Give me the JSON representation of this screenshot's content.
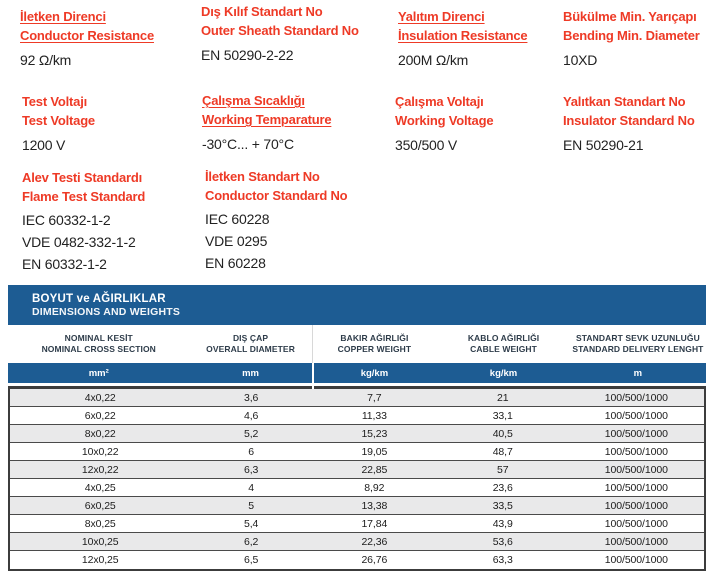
{
  "colors": {
    "accent_red": "#ee3a26",
    "band_blue": "#1d5c93",
    "header_text_navy": "#2e3c4a",
    "row_stripe_gray": "#e9e9ea"
  },
  "specs": {
    "blocks": [
      {
        "title1": "İletken Direnci",
        "title2": "Conductor Resistance",
        "underlined": true,
        "values": [
          "92 Ω/km"
        ]
      },
      {
        "title1": "Dış Kılıf Standart No",
        "title2": "Outer Sheath Standard No",
        "underlined": false,
        "values": [
          "EN 50290-2-22"
        ]
      },
      {
        "title1": "Yalıtım Direnci",
        "title2": "İnsulation Resistance",
        "underlined": true,
        "values": [
          "200M Ω/km"
        ]
      },
      {
        "title1": "Bükülme Min. Yarıçapı",
        "title2": "Bending Min. Diameter",
        "underlined": false,
        "values": [
          "10XD"
        ]
      },
      {
        "title1": "Test Voltajı",
        "title2": "Test Voltage",
        "underlined": false,
        "values": [
          "1200 V"
        ]
      },
      {
        "title1": "Çalışma Sıcaklığı",
        "title2": "Working Temparature",
        "underlined": true,
        "values": [
          "-30°C... + 70°C"
        ]
      },
      {
        "title1": "Çalışma Voltajı",
        "title2": "Working Voltage",
        "underlined": false,
        "values": [
          "350/500 V"
        ]
      },
      {
        "title1": "Yalıtkan Standart No",
        "title2": "Insulator Standard No",
        "underlined": false,
        "values": [
          "EN 50290-21"
        ]
      },
      {
        "title1": "Alev Testi Standardı",
        "title2": "Flame Test Standard",
        "underlined": false,
        "values": [
          "IEC 60332-1-2",
          "VDE 0482-332-1-2",
          "EN 60332-1-2"
        ]
      },
      {
        "title1": "İletken Standart No",
        "title2": "Conductor Standard No",
        "underlined": false,
        "values": [
          "IEC 60228",
          "VDE 0295",
          "EN 60228"
        ]
      }
    ]
  },
  "table": {
    "title": "BOYUT ve AĞIRLIKLAR",
    "subtitle": "DIMENSIONS AND WEIGHTS",
    "columns": [
      {
        "tr": "NOMINAL KESİT",
        "en": "NOMINAL CROSS SECTION",
        "unit": "mm²"
      },
      {
        "tr": "DIŞ ÇAP",
        "en": "OVERALL DIAMETER",
        "unit": "mm"
      },
      {
        "tr": "BAKIR AĞIRLIĞI",
        "en": "COPPER WEIGHT",
        "unit": "kg/km"
      },
      {
        "tr": "KABLO AĞIRLIĞI",
        "en": "CABLE WEIGHT",
        "unit": "kg/km"
      },
      {
        "tr": "STANDART SEVK UZUNLUĞU",
        "en": "STANDARD DELIVERY LENGHT",
        "unit": "m"
      }
    ],
    "rows": [
      [
        "4x0,22",
        "3,6",
        "7,7",
        "21",
        "100/500/1000"
      ],
      [
        "6x0,22",
        "4,6",
        "11,33",
        "33,1",
        "100/500/1000"
      ],
      [
        "8x0,22",
        "5,2",
        "15,23",
        "40,5",
        "100/500/1000"
      ],
      [
        "10x0,22",
        "6",
        "19,05",
        "48,7",
        "100/500/1000"
      ],
      [
        "12x0,22",
        "6,3",
        "22,85",
        "57",
        "100/500/1000"
      ],
      [
        "4x0,25",
        "4",
        "8,92",
        "23,6",
        "100/500/1000"
      ],
      [
        "6x0,25",
        "5",
        "13,38",
        "33,5",
        "100/500/1000"
      ],
      [
        "8x0,25",
        "5,4",
        "17,84",
        "43,9",
        "100/500/1000"
      ],
      [
        "10x0,25",
        "6,2",
        "22,36",
        "53,6",
        "100/500/1000"
      ],
      [
        "12x0,25",
        "6,5",
        "26,76",
        "63,3",
        "100/500/1000"
      ]
    ]
  }
}
